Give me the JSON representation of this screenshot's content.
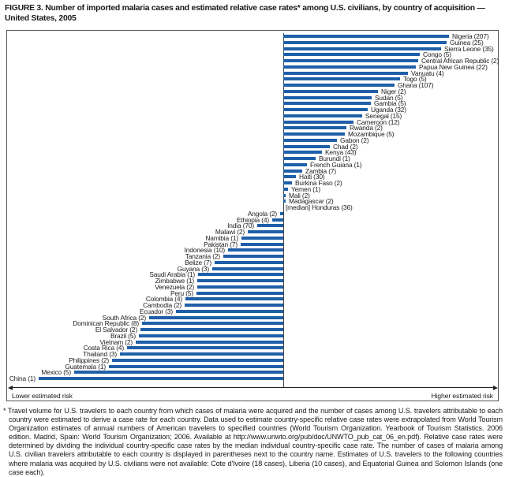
{
  "title": "FIGURE 3. Number of imported malaria cases and estimated relative case rates* among U.S. civilians, by country of acquisition — United States, 2005",
  "footnote": "* Travel volume for U.S. travelers to each country from which cases of malaria were acquired and the number of cases among U.S. travelers attributable to each country were estimated to derive a case rate for each country.  Data used to estimate country-specific relative case rates were extrapolated from World Tourism Organization estimates of annual numbers of American travelers to specified countries (World Tourism Organization. Yearbook of Tourism Statistics. 2006 edition. Madrid, Spain: World Tourism Organization; 2006. Available at http://www.unwto.org/pub/doc/UNWTO_pub_cat_06_en.pdf). Relative case rates were determined by dividing the individual country-specific case rates by the median individual country-specific case rate. The number of cases of malaria among U.S. civilian travelers attributable to each country is displayed in parentheses next to the country name. Estimates of U.S. travelers to the following countries where malaria was acquired by U.S. civilians were not available: Cote d'Ivoire (18 cases), Liberia (10 cases), and Equatorial Guinea and Solomon Islands (one case each).",
  "chart_data": {
    "type": "bar",
    "subtype": "horizontal-diverging-from-median",
    "title": "Number of imported malaria cases and estimated relative case rates among U.S. civilians, by country of acquisition — United States, 2005",
    "bar_color": "#1f5fa8",
    "legend_position": "none",
    "grid": false,
    "median_prefix": "[median]",
    "axis_labels": {
      "left": "Lower estimated risk",
      "right": "Higher estimated risk"
    },
    "note": "len = bar length in px from central median axis; side right = higher estimated relative case rate than median, side left = lower; cases shown in parentheses on chart",
    "rows": [
      {
        "country": "Nigeria",
        "cases": 207,
        "side": "right",
        "len": 210
      },
      {
        "country": "Guinea",
        "cases": 25,
        "side": "right",
        "len": 207
      },
      {
        "country": "Sierra Leone",
        "cases": 35,
        "side": "right",
        "len": 200
      },
      {
        "country": "Congo",
        "cases": 5,
        "side": "right",
        "len": 173
      },
      {
        "country": "Central African Republic",
        "cases": 2,
        "side": "right",
        "len": 171
      },
      {
        "country": "Papua New Guinea",
        "cases": 22,
        "side": "right",
        "len": 168
      },
      {
        "country": "Vanuatu",
        "cases": 4,
        "side": "right",
        "len": 158
      },
      {
        "country": "Togo",
        "cases": 5,
        "side": "right",
        "len": 148
      },
      {
        "country": "Ghana",
        "cases": 107,
        "side": "right",
        "len": 141
      },
      {
        "country": "Niger",
        "cases": 2,
        "side": "right",
        "len": 120
      },
      {
        "country": "Sudan",
        "cases": 5,
        "side": "right",
        "len": 112
      },
      {
        "country": "Gambia",
        "cases": 5,
        "side": "right",
        "len": 111
      },
      {
        "country": "Uganda",
        "cases": 32,
        "side": "right",
        "len": 107
      },
      {
        "country": "Senegal",
        "cases": 15,
        "side": "right",
        "len": 100
      },
      {
        "country": "Cameroon",
        "cases": 12,
        "side": "right",
        "len": 89
      },
      {
        "country": "Rwanda",
        "cases": 2,
        "side": "right",
        "len": 80
      },
      {
        "country": "Mozambique",
        "cases": 5,
        "side": "right",
        "len": 78
      },
      {
        "country": "Gabon",
        "cases": 2,
        "side": "right",
        "len": 68
      },
      {
        "country": "Chad",
        "cases": 2,
        "side": "right",
        "len": 59
      },
      {
        "country": "Kenya",
        "cases": 43,
        "side": "right",
        "len": 49
      },
      {
        "country": "Burundi",
        "cases": 1,
        "side": "right",
        "len": 41
      },
      {
        "country": "French Guiana",
        "cases": 1,
        "side": "right",
        "len": 30
      },
      {
        "country": "Zambia",
        "cases": 7,
        "side": "right",
        "len": 24
      },
      {
        "country": "Haiti",
        "cases": 30,
        "side": "right",
        "len": 16
      },
      {
        "country": "Burkina Faso",
        "cases": 2,
        "side": "right",
        "len": 11
      },
      {
        "country": "Yemen",
        "cases": 1,
        "side": "right",
        "len": 6
      },
      {
        "country": "Mali",
        "cases": 2,
        "side": "right",
        "len": 3
      },
      {
        "country": "Madagascar",
        "cases": 2,
        "side": "right",
        "len": 3
      },
      {
        "country": "Honduras",
        "cases": 36,
        "side": "median",
        "len": 0
      },
      {
        "country": "Angola",
        "cases": 2,
        "side": "left",
        "len": 4
      },
      {
        "country": "Ethiopia",
        "cases": 4,
        "side": "left",
        "len": 14
      },
      {
        "country": "India",
        "cases": 70,
        "side": "left",
        "len": 33
      },
      {
        "country": "Malawi",
        "cases": 2,
        "side": "left",
        "len": 45
      },
      {
        "country": "Namibia",
        "cases": 1,
        "side": "left",
        "len": 53
      },
      {
        "country": "Pakistan",
        "cases": 7,
        "side": "left",
        "len": 54
      },
      {
        "country": "Indonesia",
        "cases": 10,
        "side": "left",
        "len": 70
      },
      {
        "country": "Tanzania",
        "cases": 2,
        "side": "left",
        "len": 76
      },
      {
        "country": "Belize",
        "cases": 7,
        "side": "left",
        "len": 87
      },
      {
        "country": "Guyana",
        "cases": 3,
        "side": "left",
        "len": 90
      },
      {
        "country": "Saudi Arabia",
        "cases": 1,
        "side": "left",
        "len": 108
      },
      {
        "country": "Zimbabwe",
        "cases": 1,
        "side": "left",
        "len": 109
      },
      {
        "country": "Venezuela",
        "cases": 2,
        "side": "left",
        "len": 109
      },
      {
        "country": "Peru",
        "cases": 5,
        "side": "left",
        "len": 110
      },
      {
        "country": "Colombia",
        "cases": 4,
        "side": "left",
        "len": 124
      },
      {
        "country": "Cambodia",
        "cases": 2,
        "side": "left",
        "len": 125
      },
      {
        "country": "Ecuador",
        "cases": 3,
        "side": "left",
        "len": 136
      },
      {
        "country": "South Africa",
        "cases": 2,
        "side": "left",
        "len": 170
      },
      {
        "country": "Dominican Republic",
        "cases": 8,
        "side": "left",
        "len": 179
      },
      {
        "country": "El Salvador",
        "cases": 2,
        "side": "left",
        "len": 181
      },
      {
        "country": "Brazil",
        "cases": 5,
        "side": "left",
        "len": 183
      },
      {
        "country": "Vietnam",
        "cases": 2,
        "side": "left",
        "len": 187
      },
      {
        "country": "Costa Rica",
        "cases": 4,
        "side": "left",
        "len": 198
      },
      {
        "country": "Thailand",
        "cases": 3,
        "side": "left",
        "len": 207
      },
      {
        "country": "Philippines",
        "cases": 2,
        "side": "left",
        "len": 217
      },
      {
        "country": "Guatemala",
        "cases": 1,
        "side": "left",
        "len": 221
      },
      {
        "country": "Mexico",
        "cases": 5,
        "side": "left",
        "len": 265
      },
      {
        "country": "China",
        "cases": 1,
        "side": "left",
        "len": 310
      }
    ]
  }
}
